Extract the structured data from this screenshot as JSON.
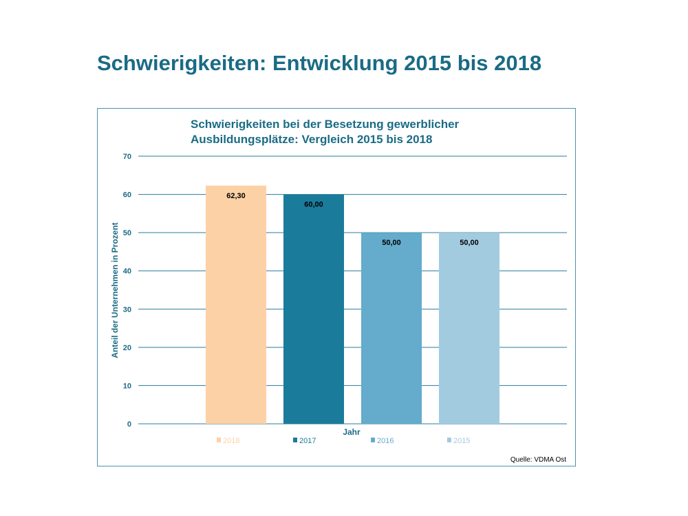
{
  "slide": {
    "title": "Schwierigkeiten: Entwicklung 2015 bis 2018"
  },
  "chart_data": {
    "type": "bar",
    "title_lines": [
      "Schwierigkeiten bei der Besetzung gewerblicher",
      "Ausbildungsplätze: Vergleich 2015 bis 2018"
    ],
    "xlabel": "Jahr",
    "ylabel": "Anteil der Unternehmen in Prozent",
    "ylim": [
      0,
      70
    ],
    "yticks": [
      0,
      10,
      20,
      30,
      40,
      50,
      60,
      70
    ],
    "grid": true,
    "legend_position": "bottom",
    "series": [
      {
        "name": "2018",
        "value": 62.3,
        "label": "62,30",
        "color": "#fdd1a6"
      },
      {
        "name": "2017",
        "value": 60,
        "label": "60,00",
        "color": "#1b7b9b"
      },
      {
        "name": "2016",
        "value": 50,
        "label": "50,00",
        "color": "#65abcb"
      },
      {
        "name": "2015",
        "value": 50,
        "label": "50,00",
        "color": "#a3cbe0"
      }
    ],
    "source": "Quelle: VDMA Ost"
  }
}
